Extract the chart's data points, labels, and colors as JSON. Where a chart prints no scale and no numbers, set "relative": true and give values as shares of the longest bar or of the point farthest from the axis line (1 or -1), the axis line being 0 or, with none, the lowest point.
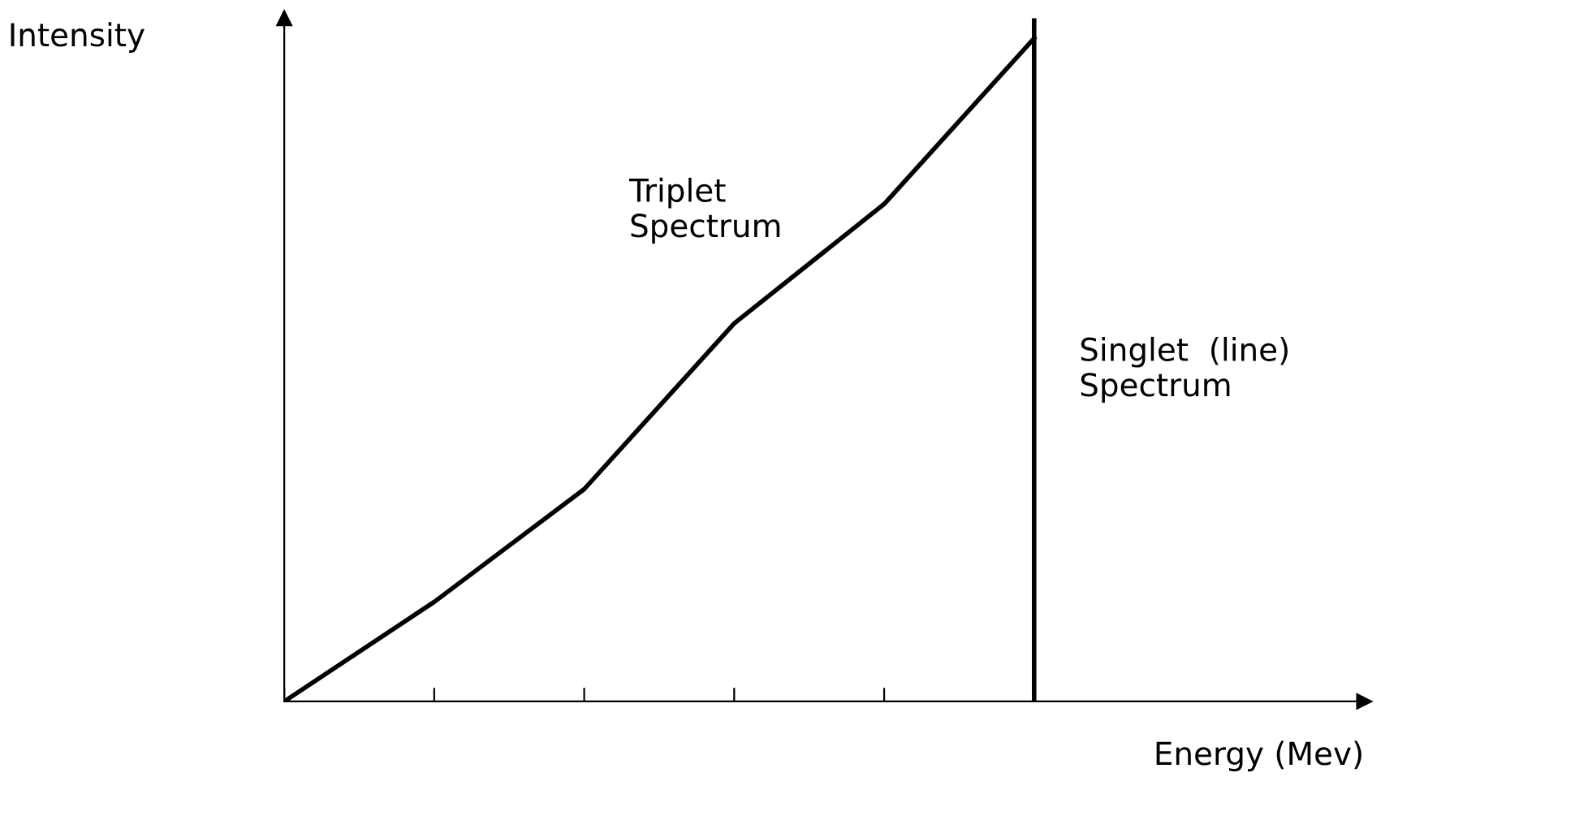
{
  "chart_data": {
    "type": "line",
    "relative": true,
    "xlabel": "Energy (Mev)",
    "ylabel": "Intensity",
    "categories": [
      null,
      null,
      null,
      null,
      null,
      null
    ],
    "series": [
      {
        "color": "#000000",
        "values": [
          0,
          0.15,
          0.32,
          0.57,
          0.75,
          1.0
        ]
      }
    ],
    "annotations": [
      "Triplet\nSpectrum",
      "Singlet  (line)\nSpectrum"
    ],
    "grid": false,
    "marker": "none",
    "line_style": "solid"
  }
}
